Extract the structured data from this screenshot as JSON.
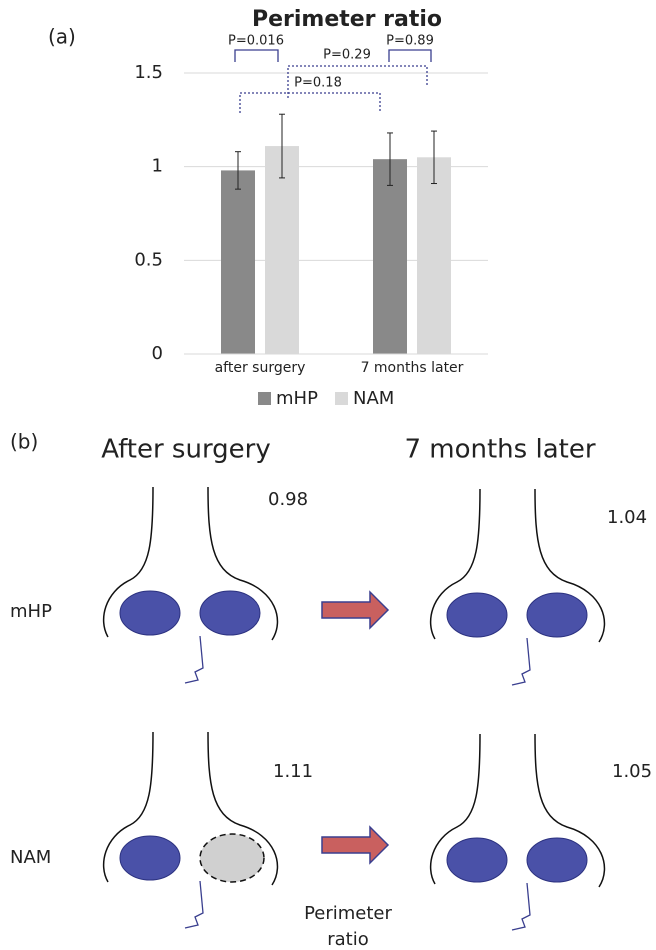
{
  "chart_data": {
    "type": "bar",
    "panel_label": "(a)",
    "title": "Perimeter ratio",
    "categories": [
      "after surgery",
      "7 months later"
    ],
    "series": [
      {
        "name": "mHP",
        "color": "#898989",
        "values": [
          0.98,
          1.04
        ],
        "errors": [
          0.1,
          0.14
        ]
      },
      {
        "name": "NAM",
        "color": "#d9d9d9",
        "values": [
          1.11,
          1.05
        ],
        "errors": [
          0.17,
          0.14
        ]
      }
    ],
    "ylim": [
      0,
      1.5
    ],
    "yticks": [
      0,
      0.5,
      1,
      1.5
    ],
    "grid": true,
    "annotations": [
      "P=0.016",
      "P=0.29",
      "P=0.89",
      "P=0.18"
    ]
  },
  "diagram": {
    "panel_label": "(b)",
    "columns": [
      "After surgery",
      "7 months later"
    ],
    "rows": [
      {
        "label": "mHP",
        "values": [
          0.98,
          1.04
        ]
      },
      {
        "label": "NAM",
        "values": [
          1.11,
          1.05
        ]
      }
    ],
    "caption_lines": [
      "Perimeter",
      "ratio"
    ]
  }
}
